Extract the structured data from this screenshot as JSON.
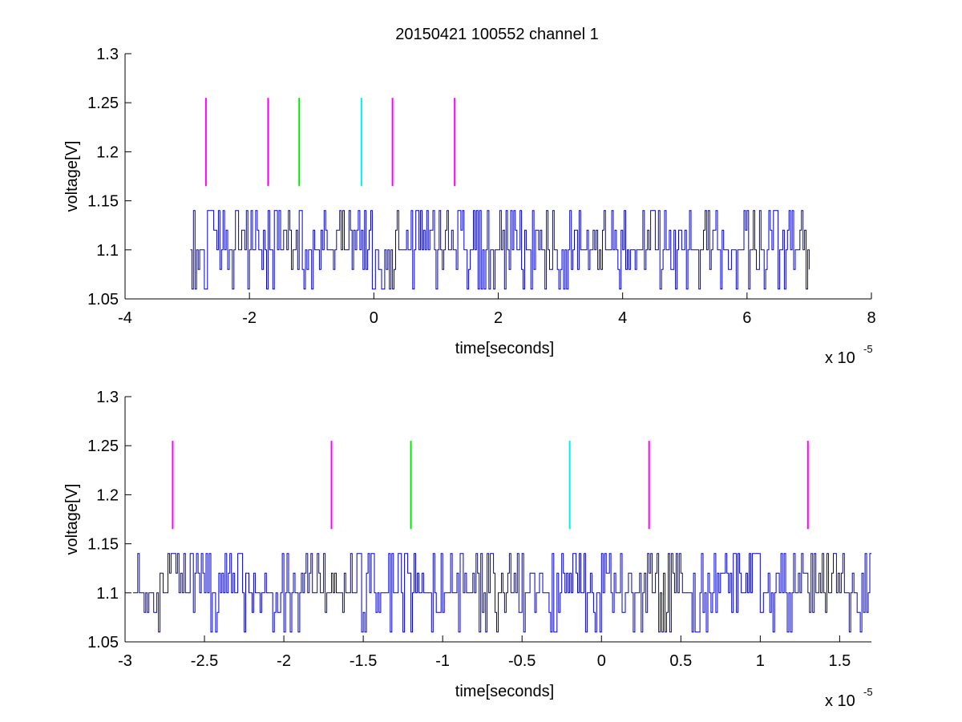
{
  "title": "20150421 100552 channel 1",
  "colors": {
    "signal": "#0000cc",
    "magenta": "#ff00ff",
    "green": "#00ee00",
    "cyan": "#00eeee",
    "axis": "#000000"
  },
  "chart_data": [
    {
      "type": "line",
      "xlabel": "time[seconds]",
      "ylabel": "voltage[V]",
      "x_scale_label": "x 10",
      "x_scale_exp": "-5",
      "xlim": [
        -4,
        8
      ],
      "ylim": [
        1.05,
        1.3
      ],
      "xticks": [
        "-4",
        "-2",
        "0",
        "2",
        "4",
        "6",
        "8"
      ],
      "yticks": [
        "1.05",
        "1.1",
        "1.15",
        "1.2",
        "1.25",
        "1.3"
      ],
      "signal": {
        "x_start": -2.95,
        "x_end": 7.0,
        "dx": 0.025,
        "levels": [
          1.06,
          1.08,
          1.1,
          1.12,
          1.14
        ],
        "baseline": 1.1,
        "seed": 7
      },
      "markers": [
        {
          "x": -2.7,
          "y0": 1.165,
          "y1": 1.255,
          "color": "magenta"
        },
        {
          "x": -1.7,
          "y0": 1.165,
          "y1": 1.255,
          "color": "magenta"
        },
        {
          "x": -1.2,
          "y0": 1.165,
          "y1": 1.255,
          "color": "green"
        },
        {
          "x": -0.2,
          "y0": 1.165,
          "y1": 1.255,
          "color": "cyan"
        },
        {
          "x": 0.3,
          "y0": 1.165,
          "y1": 1.255,
          "color": "magenta"
        },
        {
          "x": 1.3,
          "y0": 1.165,
          "y1": 1.255,
          "color": "magenta"
        }
      ]
    },
    {
      "type": "line",
      "xlabel": "time[seconds]",
      "ylabel": "voltage[V]",
      "x_scale_label": "x 10",
      "x_scale_exp": "-5",
      "xlim": [
        -3.0,
        1.7
      ],
      "ylim": [
        1.05,
        1.3
      ],
      "xticks": [
        "-3",
        "-2.5",
        "-2",
        "-1.5",
        "-1",
        "-0.5",
        "0",
        "0.5",
        "1",
        "1.5"
      ],
      "yticks": [
        "1.05",
        "1.1",
        "1.15",
        "1.2",
        "1.25",
        "1.3"
      ],
      "signal": {
        "x_start": -2.95,
        "x_end": 1.7,
        "dx": 0.01,
        "levels": [
          1.06,
          1.08,
          1.1,
          1.12,
          1.14
        ],
        "baseline": 1.1,
        "seed": 21
      },
      "markers": [
        {
          "x": -2.7,
          "y0": 1.165,
          "y1": 1.255,
          "color": "magenta"
        },
        {
          "x": -1.7,
          "y0": 1.165,
          "y1": 1.255,
          "color": "magenta"
        },
        {
          "x": -1.2,
          "y0": 1.165,
          "y1": 1.255,
          "color": "green"
        },
        {
          "x": -0.2,
          "y0": 1.165,
          "y1": 1.255,
          "color": "cyan"
        },
        {
          "x": 0.3,
          "y0": 1.165,
          "y1": 1.255,
          "color": "magenta"
        },
        {
          "x": 1.3,
          "y0": 1.165,
          "y1": 1.255,
          "color": "magenta"
        }
      ]
    }
  ]
}
